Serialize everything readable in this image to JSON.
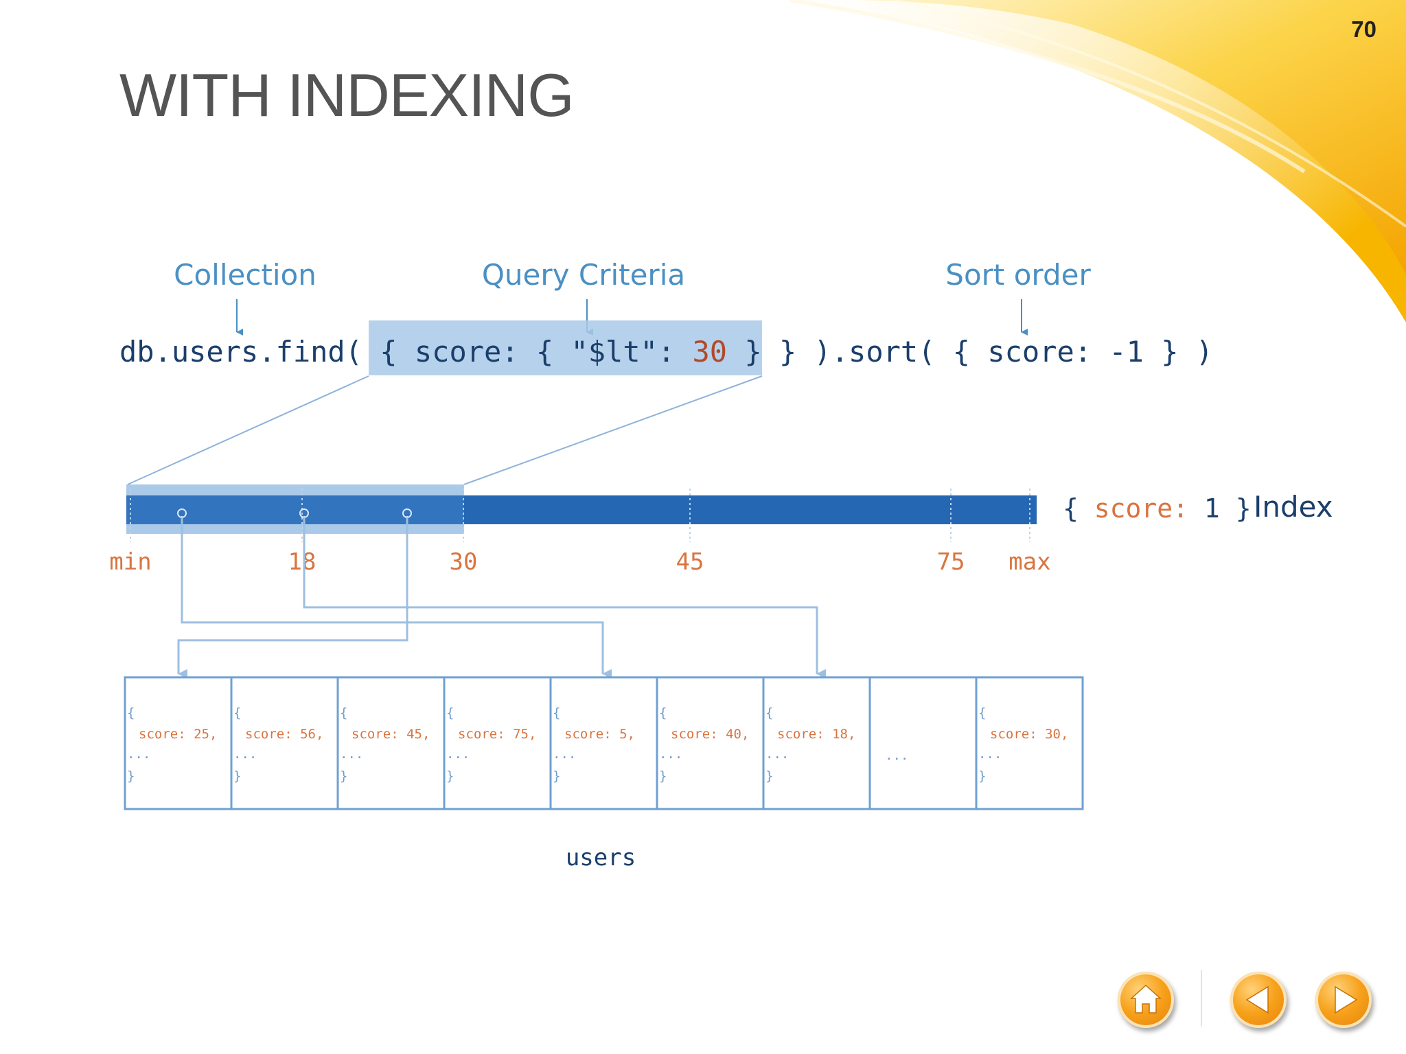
{
  "slide": {
    "page_number": "70",
    "title": "WITH INDEXING"
  },
  "query": {
    "labels": {
      "collection": "Collection",
      "criteria": "Query Criteria",
      "sort": "Sort order"
    },
    "parts": [
      {
        "text": "db.users.find(",
        "color": "#1b3f6b"
      },
      {
        "text": " { score: { \"$lt\": ",
        "color": "#1b3f6b"
      },
      {
        "text": "30",
        "color": "#b04a2a"
      },
      {
        "text": " } }",
        "color": "#1b3f6b"
      },
      {
        "text": " ).sort( { score: -1 } )",
        "color": "#1b3f6b"
      }
    ]
  },
  "index": {
    "prefix": "{ ",
    "key": "score:",
    "value": " 1",
    "suffix": " }",
    "label": "Index",
    "ticks": [
      "min",
      "18",
      "30",
      "45",
      "75",
      "max"
    ]
  },
  "collection": {
    "name": "users",
    "documents": [
      {
        "open": "{",
        "field": "score: 25,",
        "more": "...",
        "close": "}"
      },
      {
        "open": "{",
        "field": "score: 56,",
        "more": "...",
        "close": "}"
      },
      {
        "open": "{",
        "field": "score: 45,",
        "more": "...",
        "close": "}"
      },
      {
        "open": "{",
        "field": "score: 75,",
        "more": "...",
        "close": "}"
      },
      {
        "open": "{",
        "field": "score: 5,",
        "more": "...",
        "close": "}"
      },
      {
        "open": "{",
        "field": "score: 40,",
        "more": "...",
        "close": "}"
      },
      {
        "open": "{",
        "field": "score: 18,",
        "more": "...",
        "close": "}"
      },
      {
        "open": "",
        "field": "",
        "more": "...",
        "close": ""
      },
      {
        "open": "{",
        "field": "score: 30,",
        "more": "...",
        "close": "}"
      }
    ]
  },
  "colors": {
    "label_blue": "#4a90c4",
    "code_dark": "#1b3f6b",
    "number_orange": "#d9743f",
    "index_bar": "#2567b3",
    "highlight": "#a9c9e8",
    "connector": "#9dbfe0",
    "accent_yellow": "#f7c21b"
  },
  "nav": {
    "home": "home-icon",
    "prev": "previous-icon",
    "next": "next-icon"
  }
}
